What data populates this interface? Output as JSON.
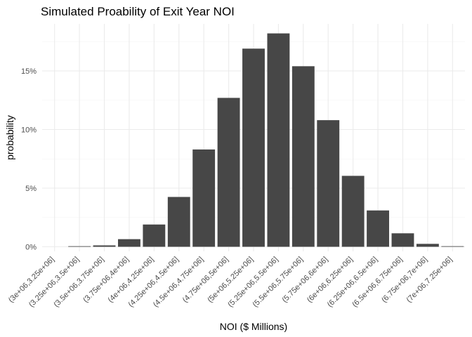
{
  "chart_data": {
    "type": "bar",
    "title": "Simulated Proability of Exit Year NOI",
    "xlabel": "NOI ($ Millions)",
    "ylabel": "probability",
    "categories": [
      "(3e+06,3.25e+06]",
      "(3.25e+06,3.5e+06]",
      "(3.5e+06,3.75e+06]",
      "(3.75e+06,4e+06]",
      "(4e+06,4.25e+06]",
      "(4.25e+06,4.5e+06]",
      "(4.5e+06,4.75e+06]",
      "(4.75e+06,5e+06]",
      "(5e+06,5.25e+06]",
      "(5.25e+06,5.5e+06]",
      "(5.5e+06,5.75e+06]",
      "(5.75e+06,6e+06]",
      "(6e+06,6.25e+06]",
      "(6.25e+06,6.5e+06]",
      "(6.5e+06,6.75e+06]",
      "(6.75e+06,7e+06]",
      "(7e+06,7.25e+06]"
    ],
    "values": [
      0.0,
      0.05,
      0.12,
      0.65,
      1.9,
      4.25,
      8.3,
      12.7,
      16.9,
      18.2,
      15.4,
      10.8,
      6.05,
      3.1,
      1.15,
      0.25,
      0.05
    ],
    "ylim": [
      0,
      19.4
    ],
    "yticks": [
      0,
      5,
      10,
      15
    ],
    "ytick_labels": [
      "0%",
      "5%",
      "10%",
      "15%"
    ],
    "bar_color": "#474747",
    "grid": true,
    "legend": "none"
  }
}
